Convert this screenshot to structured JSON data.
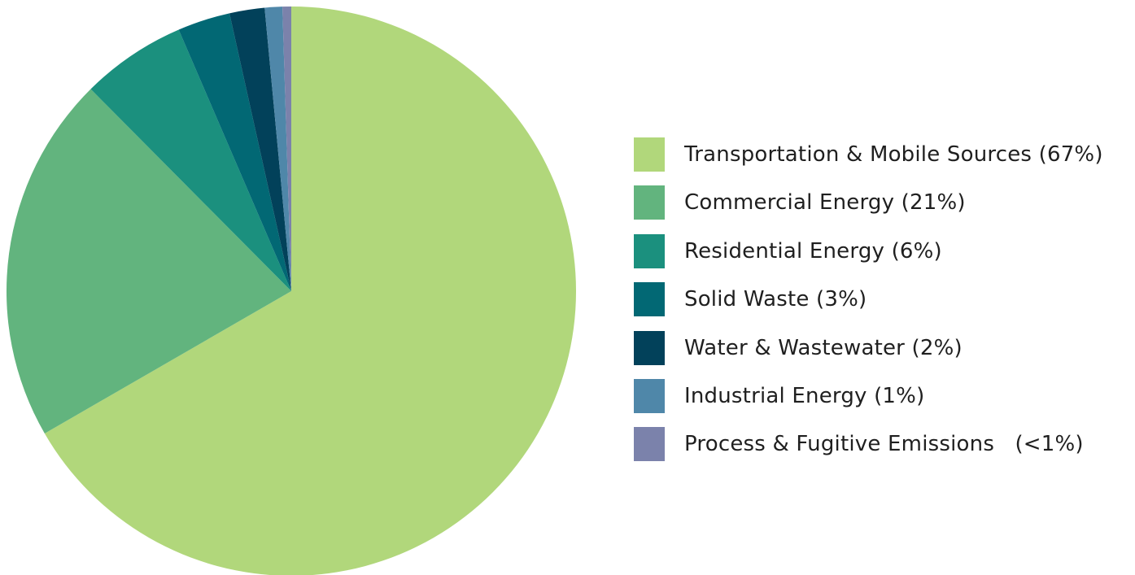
{
  "chart_data": {
    "type": "pie",
    "title": "",
    "slices": [
      {
        "label": "Transportation & Mobile Sources (67%)",
        "value": 67,
        "color": "#b1d77b"
      },
      {
        "label": "Commercial Energy (21%)",
        "value": 21,
        "color": "#62b47e"
      },
      {
        "label": "Residential Energy (6%)",
        "value": 6,
        "color": "#1b907e"
      },
      {
        "label": "Solid Waste (3%)",
        "value": 3,
        "color": "#026874"
      },
      {
        "label": "Water & Wastewater (2%)",
        "value": 2,
        "color": "#02415a"
      },
      {
        "label": "Industrial Energy (1%)",
        "value": 1,
        "color": "#4f87a9"
      },
      {
        "label": "Process & Fugitive Emissions   (<1%)",
        "value": 0.5,
        "color": "#7b82ab"
      }
    ],
    "legend_position": "right"
  }
}
